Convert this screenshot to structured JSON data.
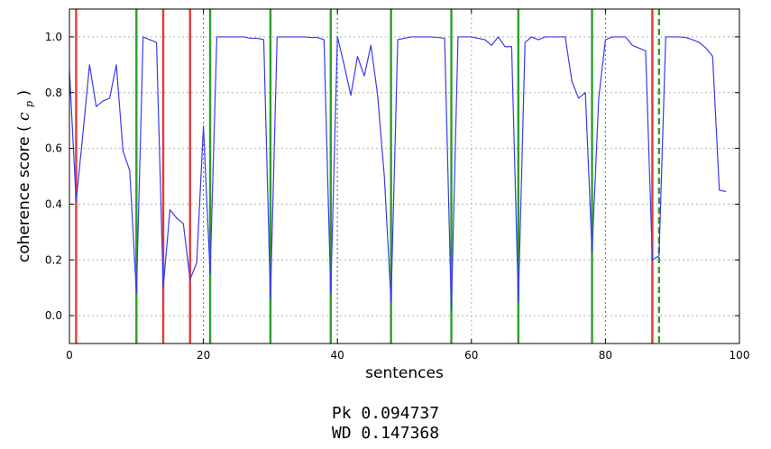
{
  "chart_data": {
    "type": "line",
    "xlabel": "sentences",
    "ylabel": "coherence score",
    "ylabel_math_base": "c",
    "ylabel_math_sub": "p",
    "xlim": [
      0,
      100
    ],
    "ylim": [
      -0.1,
      1.1
    ],
    "xticks": [
      0,
      20,
      40,
      60,
      80,
      100
    ],
    "yticks": [
      0.0,
      0.2,
      0.4,
      0.6,
      0.8,
      1.0
    ],
    "grid": true,
    "line_color": "#3a3aee",
    "series": [
      {
        "x": [
          0,
          1,
          2,
          3,
          4,
          5,
          6,
          7,
          8,
          9,
          10,
          11,
          12,
          13,
          14,
          15,
          16,
          17,
          18,
          19,
          20,
          21,
          22,
          23,
          24,
          25,
          26,
          27,
          28,
          29,
          30,
          31,
          32,
          33,
          34,
          35,
          36,
          37,
          38,
          39,
          40,
          41,
          42,
          43,
          44,
          45,
          46,
          47,
          48,
          49,
          50,
          51,
          52,
          53,
          54,
          55,
          56,
          57,
          58,
          59,
          60,
          61,
          62,
          63,
          64,
          65,
          66,
          67,
          68,
          69,
          70,
          71,
          72,
          73,
          74,
          75,
          76,
          77,
          78,
          79,
          80,
          81,
          82,
          83,
          84,
          85,
          86,
          87,
          88,
          89,
          90,
          91,
          92,
          93,
          94,
          95,
          96,
          97,
          98
        ],
        "y": [
          0.88,
          0.41,
          0.65,
          0.9,
          0.75,
          0.77,
          0.78,
          0.9,
          0.59,
          0.52,
          0.08,
          1.0,
          0.99,
          0.98,
          0.1,
          0.38,
          0.35,
          0.33,
          0.13,
          0.19,
          0.68,
          0.15,
          1.0,
          1.0,
          1.0,
          1.0,
          1.0,
          0.995,
          0.995,
          0.99,
          0.06,
          1.0,
          1.0,
          1.0,
          1.0,
          1.0,
          0.998,
          0.998,
          0.99,
          0.08,
          1.0,
          0.9,
          0.79,
          0.93,
          0.86,
          0.97,
          0.79,
          0.5,
          0.05,
          0.99,
          0.995,
          1.0,
          1.0,
          1.0,
          1.0,
          0.998,
          0.995,
          0.02,
          1.0,
          1.0,
          1.0,
          0.995,
          0.99,
          0.97,
          1.0,
          0.965,
          0.965,
          0.05,
          0.98,
          1.0,
          0.99,
          1.0,
          1.0,
          1.0,
          1.0,
          0.84,
          0.78,
          0.8,
          0.23,
          0.78,
          0.99,
          1.0,
          1.0,
          1.0,
          0.97,
          0.96,
          0.95,
          0.2,
          0.215,
          1.0,
          1.0,
          1.0,
          0.998,
          0.99,
          0.98,
          0.96,
          0.93,
          0.45,
          0.445
        ]
      }
    ],
    "vlines": [
      {
        "x": 1,
        "color": "#e23a3a",
        "style": "solid"
      },
      {
        "x": 10,
        "color": "#2c9e2c",
        "style": "solid"
      },
      {
        "x": 14,
        "color": "#e23a3a",
        "style": "solid"
      },
      {
        "x": 18,
        "color": "#e23a3a",
        "style": "solid"
      },
      {
        "x": 20,
        "color": "#2c9e2c",
        "style": "dotted"
      },
      {
        "x": 21,
        "color": "#2c9e2c",
        "style": "solid"
      },
      {
        "x": 30,
        "color": "#2c9e2c",
        "style": "solid"
      },
      {
        "x": 39,
        "color": "#2c9e2c",
        "style": "solid"
      },
      {
        "x": 40,
        "color": "#2c9e2c",
        "style": "dotted"
      },
      {
        "x": 48,
        "color": "#2c9e2c",
        "style": "solid"
      },
      {
        "x": 57,
        "color": "#2c9e2c",
        "style": "solid"
      },
      {
        "x": 67,
        "color": "#2c9e2c",
        "style": "solid"
      },
      {
        "x": 78,
        "color": "#2c9e2c",
        "style": "solid"
      },
      {
        "x": 80,
        "color": "#2c9e2c",
        "style": "dotted"
      },
      {
        "x": 87,
        "color": "#e23a3a",
        "style": "solid"
      },
      {
        "x": 88,
        "color": "#2c9e2c",
        "style": "dashed"
      }
    ]
  },
  "metrics": {
    "pk": "Pk 0.094737",
    "wd": "WD 0.147368"
  }
}
